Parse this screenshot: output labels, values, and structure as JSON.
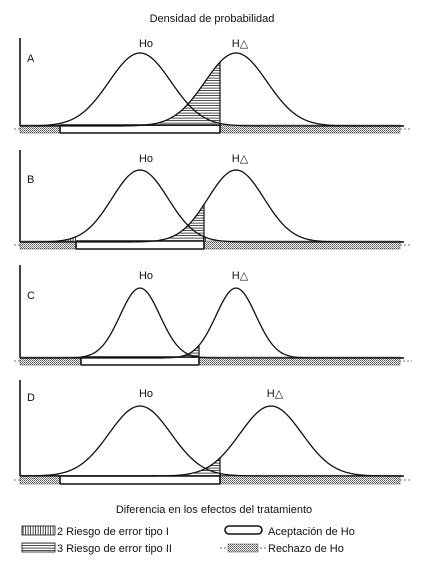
{
  "top_title": "Densidad de probabilidad",
  "bottom_title": "Diferencia en los efectos del tratamiento",
  "panels": [
    {
      "label": "A",
      "ho_label": "Ho",
      "ha_label": "H△"
    },
    {
      "label": "B",
      "ho_label": "Ho",
      "ha_label": "H△"
    },
    {
      "label": "C",
      "ho_label": "Ho",
      "ha_label": "H△"
    },
    {
      "label": "D",
      "ho_label": "Ho",
      "ha_label": "H△"
    }
  ],
  "legend": {
    "type1": "2 Riesgo de error tipo I",
    "type2": "3 Riesgo de error tipo II",
    "accept": "Aceptación de Ho",
    "reject": "Rechazo de Ho"
  }
}
